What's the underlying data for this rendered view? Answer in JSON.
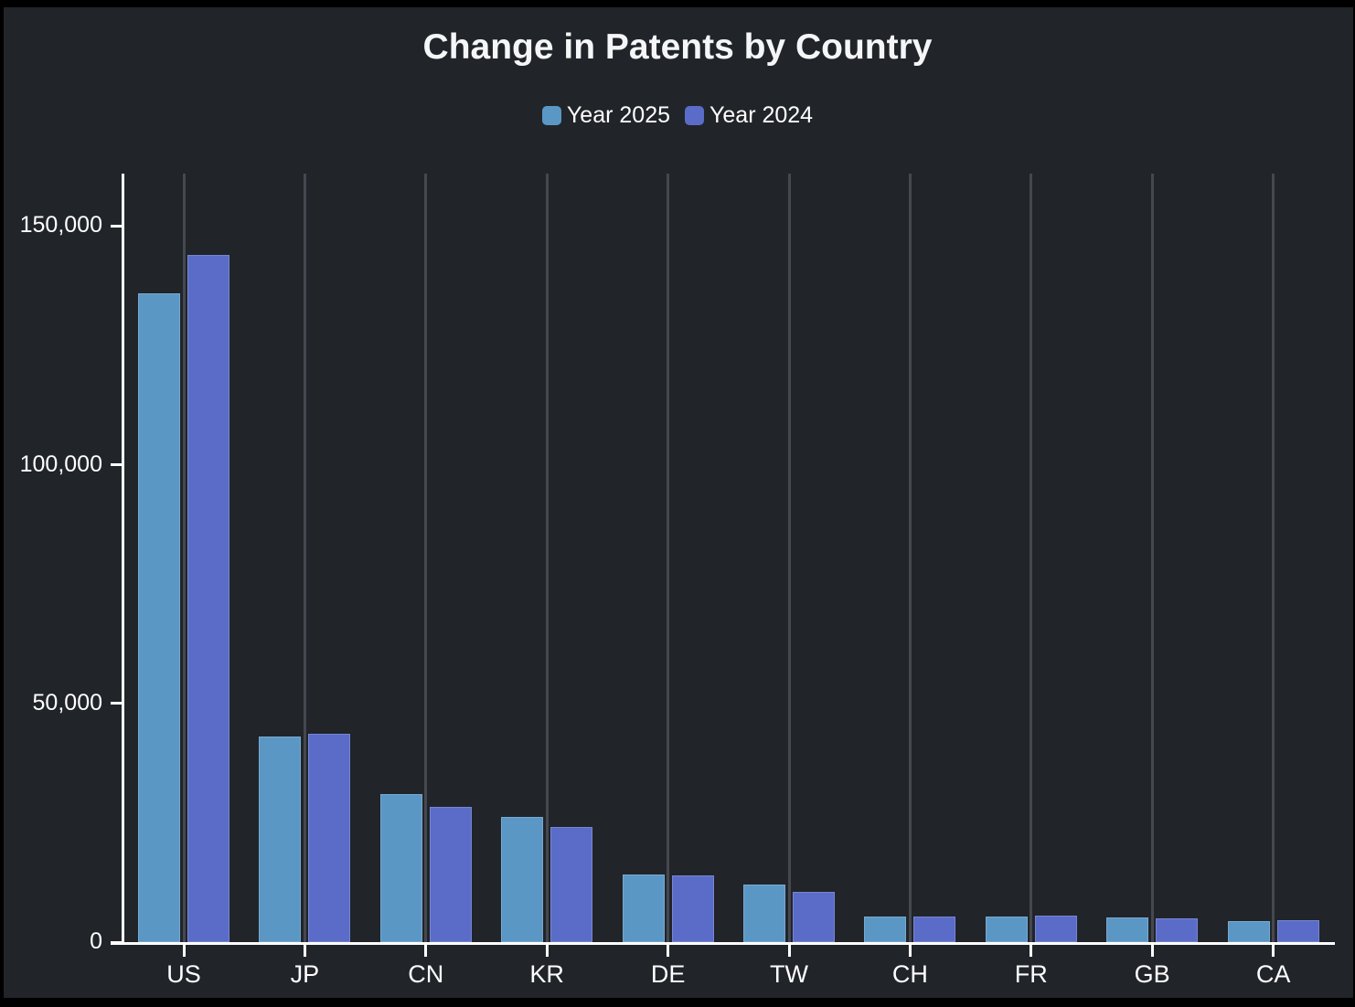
{
  "title": "Change in Patents by Country",
  "chart_data": {
    "type": "bar",
    "categories": [
      "US",
      "JP",
      "CN",
      "KR",
      "DE",
      "TW",
      "CH",
      "FR",
      "GB",
      "CA"
    ],
    "series": [
      {
        "name": "Year 2025",
        "color": "#5b97c5",
        "values": [
          136000,
          43100,
          31000,
          26300,
          14100,
          12000,
          5400,
          5400,
          5200,
          4400
        ]
      },
      {
        "name": "Year 2024",
        "color": "#5a6cc8",
        "values": [
          144000,
          43600,
          28400,
          24200,
          14000,
          10600,
          5300,
          5600,
          4900,
          4600
        ]
      }
    ],
    "xlabel": "",
    "ylabel": "",
    "ylim": [
      0,
      161000
    ],
    "yticks": [
      0,
      50000,
      100000,
      150000
    ],
    "ytick_labels": [
      "0",
      "50,000",
      "100,000",
      "150,000"
    ],
    "grid": "vertical-lines-at-category-centers",
    "legend_position": "top-center",
    "colors": {
      "background": "#212429",
      "page_border": "#000000",
      "axis": "#ffffff",
      "gridline": "#45484e",
      "text": "#ffffff"
    }
  }
}
